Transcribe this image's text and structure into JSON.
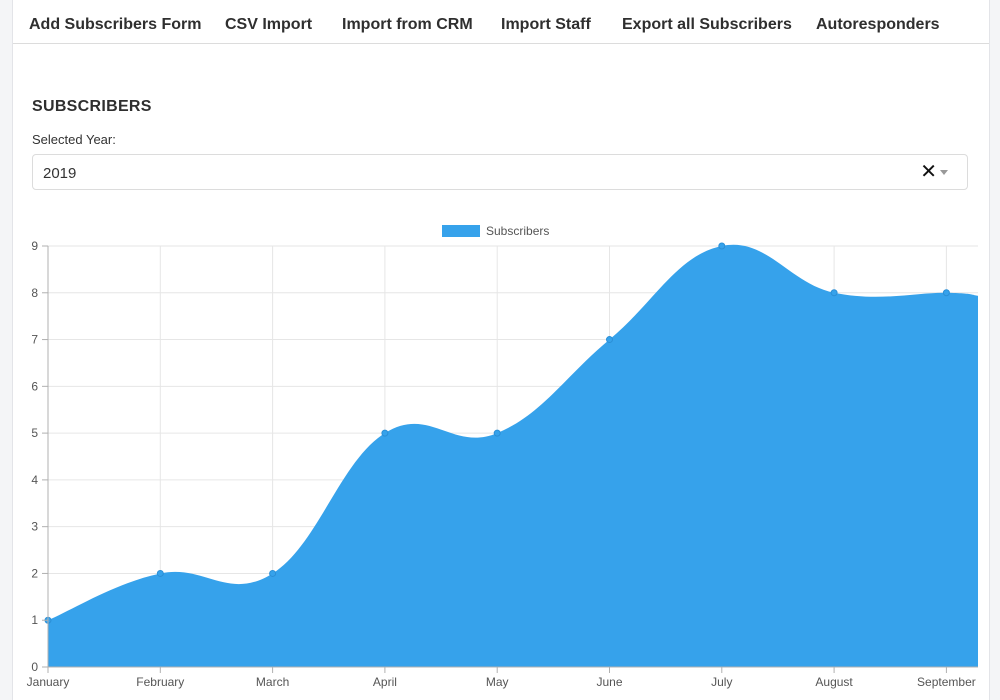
{
  "tabs": [
    {
      "label": "Add Subscribers Form"
    },
    {
      "label": "CSV Import"
    },
    {
      "label": "Import from CRM"
    },
    {
      "label": "Import Staff"
    },
    {
      "label": "Export all Subscribers"
    },
    {
      "label": "Autoresponders"
    }
  ],
  "section": {
    "title": "SUBSCRIBERS",
    "year_label": "Selected Year:"
  },
  "year_select": {
    "value": "2019",
    "clear_icon": "close-icon",
    "caret_icon": "chevron-down-icon"
  },
  "colors": {
    "series_fill": "#36a2eb",
    "grid": "#e6e6e6",
    "axis": "#b0b0b0"
  },
  "chart_data": {
    "type": "area",
    "categories": [
      "January",
      "February",
      "March",
      "April",
      "May",
      "June",
      "July",
      "August",
      "September"
    ],
    "series": [
      {
        "name": "Subscribers",
        "values": [
          1,
          2,
          2,
          5,
          5,
          7,
          9,
          8,
          8
        ]
      }
    ],
    "y_ticks": [
      "0",
      "1",
      "2",
      "3",
      "4",
      "5",
      "6",
      "7",
      "8",
      "9"
    ],
    "ylim": [
      0,
      9
    ],
    "grid": true,
    "legend_position": "top"
  }
}
